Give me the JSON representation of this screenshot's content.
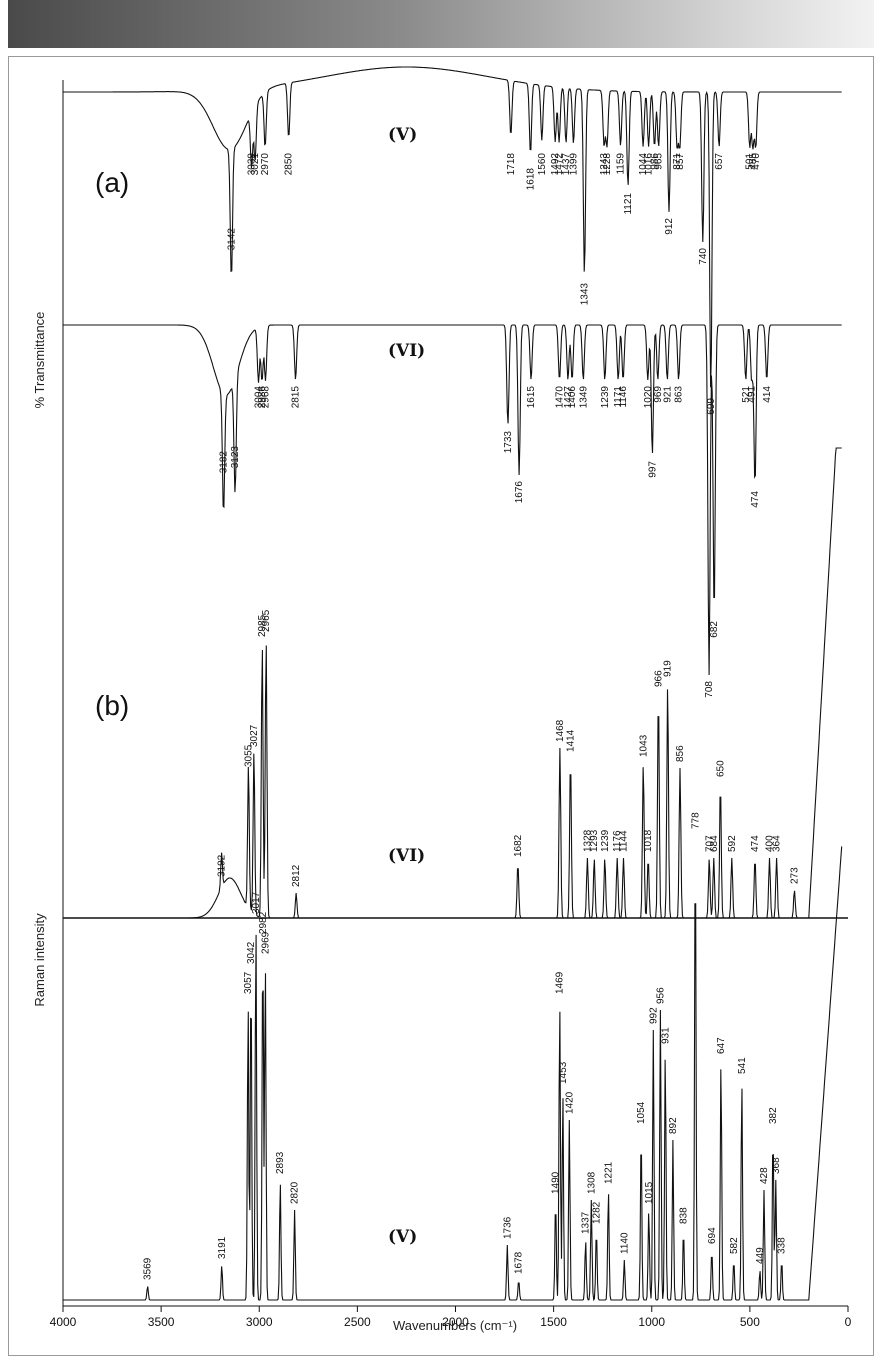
{
  "chart_data": {
    "type": "line",
    "xlabel": "Wavenumbers (cm⁻¹)",
    "xlim": [
      4000,
      0
    ],
    "xticks": [
      "4000",
      "3500",
      "3000",
      "2500",
      "2000",
      "1500",
      "1000",
      "500",
      "0"
    ],
    "panels": [
      {
        "label": "(a)",
        "ylabel": "% Transmittance",
        "series": [
          {
            "name": "(V)",
            "peaks": [
              3142,
              3039,
              3021,
              2970,
              2850,
              1718,
              1618,
              1560,
              1492,
              1472,
              1437,
              1399,
              1343,
              1243,
              1228,
              1159,
              1121,
              1044,
              1016,
              986,
              965,
              912,
              871,
              857,
              740,
              699,
              657,
              501,
              485,
              470
            ]
          },
          {
            "name": "(VI)",
            "peaks": [
              3182,
              3123,
              3004,
              2986,
              2968,
              2815,
              1733,
              1676,
              1615,
              1470,
              1427,
              1406,
              1349,
              1239,
              1171,
              1146,
              1020,
              997,
              969,
              921,
              863,
              708,
              682,
              521,
              491,
              474,
              414
            ]
          }
        ]
      },
      {
        "label": "(b)",
        "ylabel": "Raman intensity",
        "series": [
          {
            "name": "(VI)",
            "peaks": [
              3192,
              3055,
              3027,
              2985,
              2965,
              2812,
              1682,
              1468,
              1414,
              1328,
              1293,
              1239,
              1176,
              1144,
              1043,
              1018,
              966,
              919,
              856,
              707,
              684,
              650,
              592,
              474,
              400,
              364,
              273
            ]
          },
          {
            "name": "(V)",
            "peaks": [
              3569,
              3191,
              3057,
              3042,
              3017,
              2982,
              2969,
              2893,
              2820,
              1736,
              1678,
              1490,
              1469,
              1453,
              1420,
              1337,
              1308,
              1282,
              1221,
              1140,
              1054,
              1015,
              992,
              956,
              931,
              892,
              838,
              778,
              694,
              647,
              582,
              541,
              449,
              428,
              382,
              368,
              338
            ]
          }
        ]
      }
    ]
  }
}
